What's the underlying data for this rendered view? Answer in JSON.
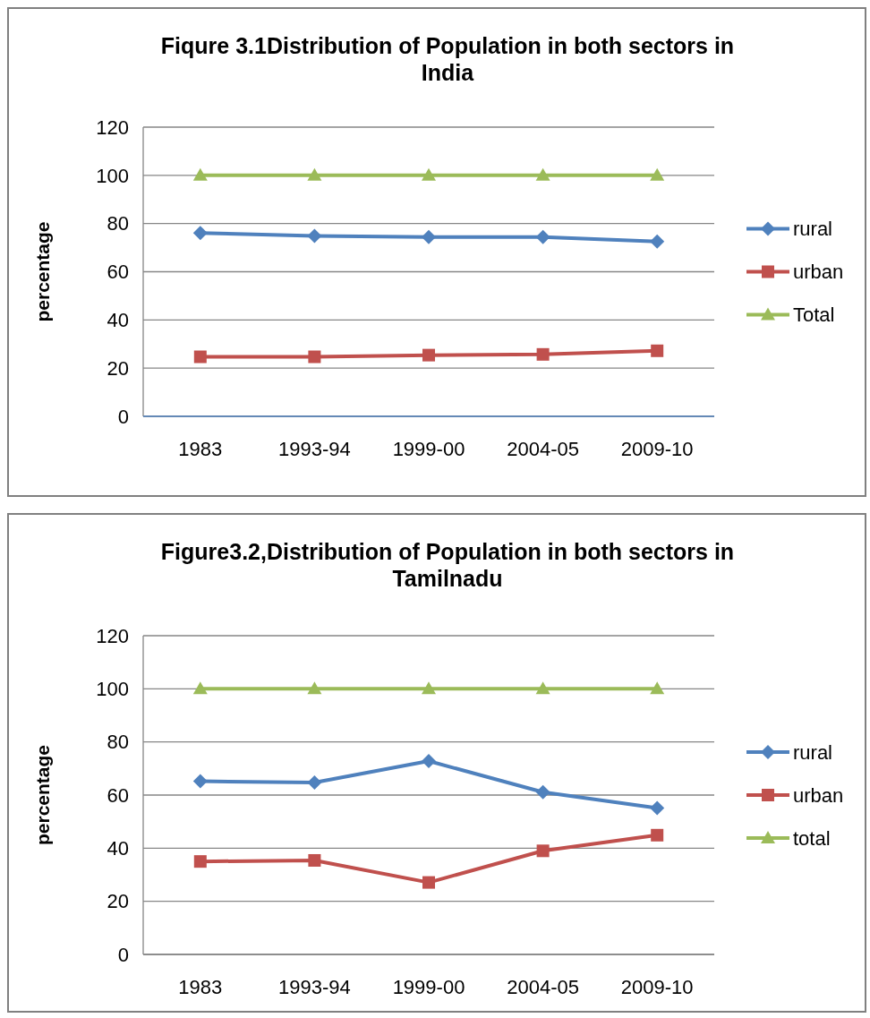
{
  "chart_data": [
    {
      "type": "line",
      "title": "Fiqure 3.1Distribution of Population in both sectors in India",
      "ylabel": "percentage",
      "categories": [
        "1983",
        "1993-94",
        "1999-00",
        "2004-05",
        "2009-10"
      ],
      "ylim": [
        0,
        120
      ],
      "yticks": [
        0,
        20,
        40,
        60,
        80,
        100,
        120
      ],
      "grid": "y",
      "legend": "right",
      "series": [
        {
          "name": "rural",
          "color": "#4f81bd",
          "marker": "diamond",
          "values": [
            76.1,
            74.9,
            74.4,
            74.4,
            72.5
          ]
        },
        {
          "name": "urban",
          "color": "#c0504d",
          "marker": "square",
          "values": [
            24.7,
            24.7,
            25.4,
            25.7,
            27.2
          ]
        },
        {
          "name": "Total",
          "color": "#9bbb59",
          "marker": "triangle",
          "values": [
            100,
            100,
            100,
            100,
            100
          ]
        }
      ]
    },
    {
      "type": "line",
      "title": "Figure3.2,Distribution of Population in both sectors in Tamilnadu",
      "ylabel": "percentage",
      "categories": [
        "1983",
        "1993-94",
        "1999-00",
        "2004-05",
        "2009-10"
      ],
      "ylim": [
        0,
        120
      ],
      "yticks": [
        0,
        20,
        40,
        60,
        80,
        100,
        120
      ],
      "grid": "y",
      "legend": "right",
      "series": [
        {
          "name": "rural",
          "color": "#4f81bd",
          "marker": "diamond",
          "values": [
            65.2,
            64.7,
            72.8,
            61.1,
            55.1
          ]
        },
        {
          "name": "urban",
          "color": "#c0504d",
          "marker": "square",
          "values": [
            35.0,
            35.4,
            27.1,
            39.0,
            44.9
          ]
        },
        {
          "name": "total",
          "color": "#9bbb59",
          "marker": "triangle",
          "values": [
            100,
            100,
            100,
            100,
            100
          ]
        }
      ]
    }
  ]
}
